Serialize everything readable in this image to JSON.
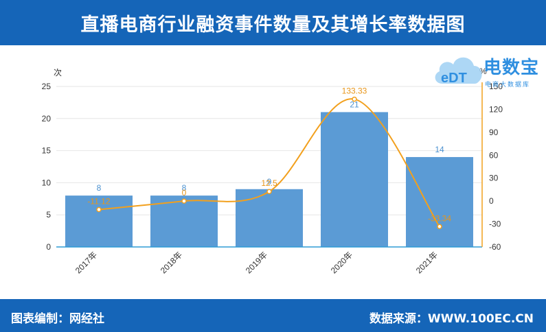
{
  "header": {
    "title": "直播电商行业融资事件数量及其增长率数据图"
  },
  "footer": {
    "left": "图表编制：网经社",
    "right": "数据来源：WWW.100EC.CN"
  },
  "logo": {
    "brand": "电数宝",
    "sub": "电商大数据库",
    "mark": "eDT"
  },
  "chart_data": {
    "type": "bar",
    "categories": [
      "2017年",
      "2018年",
      "2019年",
      "2020年",
      "2021年"
    ],
    "series": [
      {
        "values": [
          8,
          8,
          9,
          21,
          14
        ],
        "color": "#5b9bd5",
        "kind": "bar"
      },
      {
        "values": [
          -11.12,
          0,
          12.5,
          133.33,
          -33.34
        ],
        "color": "#f2a01d",
        "kind": "line"
      }
    ],
    "ylabel": "次",
    "y2label": "%",
    "ylim": [
      0,
      25
    ],
    "yticks": [
      0,
      5,
      10,
      15,
      20,
      25
    ],
    "y2lim": [
      -60,
      150
    ],
    "y2ticks": [
      -60,
      -30,
      0,
      30,
      60,
      90,
      120,
      150
    ],
    "bar_labels": [
      "8",
      "8",
      "9",
      "21",
      "14"
    ],
    "line_labels": [
      "-11.12",
      "0",
      "12.5",
      "133.33",
      "-33.34"
    ],
    "grid": true
  }
}
